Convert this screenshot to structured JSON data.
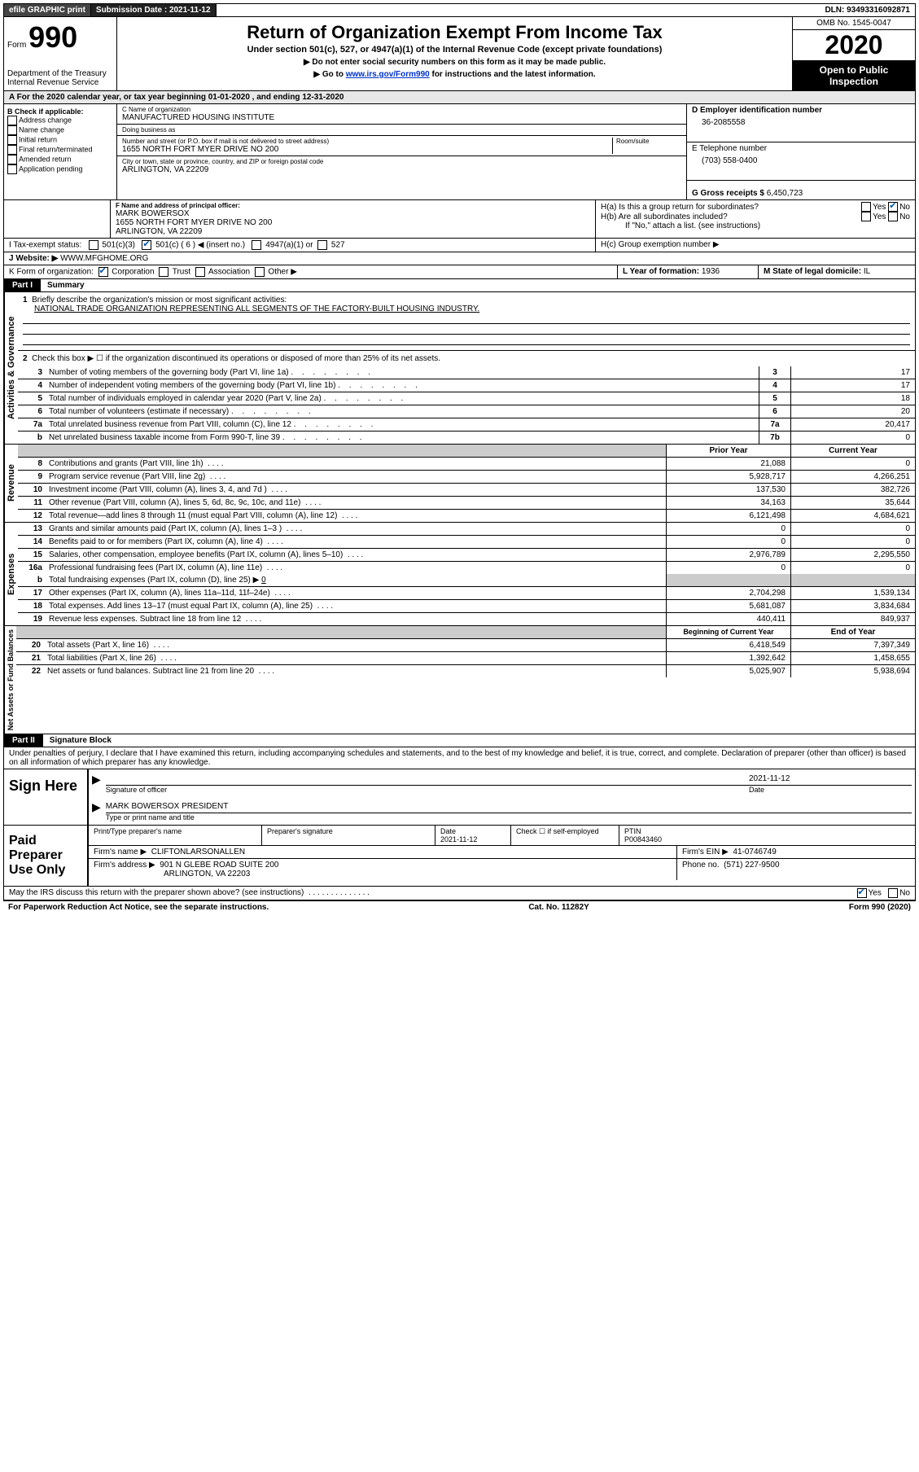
{
  "topbar": {
    "efile": "efile GRAPHIC print",
    "submission_label": "Submission Date :",
    "submission_date": "2021-11-12",
    "dln_label": "DLN:",
    "dln": "93493316092871"
  },
  "header": {
    "form_label": "Form",
    "form_number": "990",
    "dept1": "Department of the Treasury",
    "dept2": "Internal Revenue Service",
    "title": "Return of Organization Exempt From Income Tax",
    "sub1": "Under section 501(c), 527, or 4947(a)(1) of the Internal Revenue Code (except private foundations)",
    "sub2": "▶ Do not enter social security numbers on this form as it may be made public.",
    "sub3a": "▶ Go to ",
    "sub3_link": "www.irs.gov/Form990",
    "sub3b": " for instructions and the latest information.",
    "omb": "OMB No. 1545-0047",
    "year": "2020",
    "inspection1": "Open to Public",
    "inspection2": "Inspection"
  },
  "lineA": "A For the 2020 calendar year, or tax year beginning 01-01-2020    , and ending 12-31-2020",
  "boxB": {
    "title": "B Check if applicable:",
    "opts": [
      "Address change",
      "Name change",
      "Initial return",
      "Final return/terminated",
      "Amended return",
      "Application pending"
    ]
  },
  "boxC": {
    "name_label": "C Name of organization",
    "name": "MANUFACTURED HOUSING INSTITUTE",
    "dba_label": "Doing business as",
    "dba": "",
    "street_label": "Number and street (or P.O. box if mail is not delivered to street address)",
    "room_label": "Room/suite",
    "street": "1655 NORTH FORT MYER DRIVE NO 200",
    "city_label": "City or town, state or province, country, and ZIP or foreign postal code",
    "city": "ARLINGTON, VA  22209"
  },
  "boxD": {
    "label": "D Employer identification number",
    "value": "36-2085558"
  },
  "boxE": {
    "label": "E Telephone number",
    "value": "(703) 558-0400"
  },
  "boxG": {
    "label": "G Gross receipts $",
    "value": "6,450,723"
  },
  "boxF": {
    "label": "F Name and address of principal officer:",
    "name": "MARK BOWERSOX",
    "addr1": "1655 NORTH FORT MYER DRIVE NO 200",
    "addr2": "ARLINGTON, VA  22209"
  },
  "boxH": {
    "ha_label": "H(a)  Is this a group return for subordinates?",
    "yes": "Yes",
    "no": "No",
    "hb_label": "H(b)  Are all subordinates included?",
    "hb_note": "If \"No,\" attach a list. (see instructions)",
    "hc_label": "H(c)  Group exemption number ▶"
  },
  "boxI": {
    "label": "I  Tax-exempt status:",
    "o1": "501(c)(3)",
    "o2": "501(c) ( 6 ) ◀ (insert no.)",
    "o3": "4947(a)(1) or",
    "o4": "527"
  },
  "boxJ": {
    "label": "J  Website: ▶",
    "value": "WWW.MFGHOME.ORG"
  },
  "boxK": {
    "label": "K Form of organization:",
    "o1": "Corporation",
    "o2": "Trust",
    "o3": "Association",
    "o4": "Other ▶"
  },
  "boxL": {
    "label": "L Year of formation:",
    "value": "1936"
  },
  "boxM": {
    "label": "M State of legal domicile:",
    "value": "IL"
  },
  "part1": {
    "header": "Part I",
    "title": "Summary"
  },
  "governance": {
    "side": "Activities & Governance",
    "l1_label": "Briefly describe the organization's mission or most significant activities:",
    "l1_value": "NATIONAL TRADE ORGANIZATION REPRESENTING ALL SEGMENTS OF THE FACTORY-BUILT HOUSING INDUSTRY.",
    "l2": "Check this box ▶ ☐  if the organization discontinued its operations or disposed of more than 25% of its net assets.",
    "rows": [
      {
        "n": "3",
        "d": "Number of voting members of the governing body (Part VI, line 1a)",
        "box": "3",
        "v": "17"
      },
      {
        "n": "4",
        "d": "Number of independent voting members of the governing body (Part VI, line 1b)",
        "box": "4",
        "v": "17"
      },
      {
        "n": "5",
        "d": "Total number of individuals employed in calendar year 2020 (Part V, line 2a)",
        "box": "5",
        "v": "18"
      },
      {
        "n": "6",
        "d": "Total number of volunteers (estimate if necessary)",
        "box": "6",
        "v": "20"
      },
      {
        "n": "7a",
        "d": "Total unrelated business revenue from Part VIII, column (C), line 12",
        "box": "7a",
        "v": "20,417"
      },
      {
        "n": "b",
        "d": "Net unrelated business taxable income from Form 990-T, line 39",
        "box": "7b",
        "v": "0"
      }
    ]
  },
  "revenue": {
    "side": "Revenue",
    "hdr_prior": "Prior Year",
    "hdr_curr": "Current Year",
    "rows": [
      {
        "n": "8",
        "d": "Contributions and grants (Part VIII, line 1h)",
        "p": "21,088",
        "c": "0"
      },
      {
        "n": "9",
        "d": "Program service revenue (Part VIII, line 2g)",
        "p": "5,928,717",
        "c": "4,266,251"
      },
      {
        "n": "10",
        "d": "Investment income (Part VIII, column (A), lines 3, 4, and 7d )",
        "p": "137,530",
        "c": "382,726"
      },
      {
        "n": "11",
        "d": "Other revenue (Part VIII, column (A), lines 5, 6d, 8c, 9c, 10c, and 11e)",
        "p": "34,163",
        "c": "35,644"
      },
      {
        "n": "12",
        "d": "Total revenue—add lines 8 through 11 (must equal Part VIII, column (A), line 12)",
        "p": "6,121,498",
        "c": "4,684,621"
      }
    ]
  },
  "expenses": {
    "side": "Expenses",
    "rows": [
      {
        "n": "13",
        "d": "Grants and similar amounts paid (Part IX, column (A), lines 1–3 )",
        "p": "0",
        "c": "0"
      },
      {
        "n": "14",
        "d": "Benefits paid to or for members (Part IX, column (A), line 4)",
        "p": "0",
        "c": "0"
      },
      {
        "n": "15",
        "d": "Salaries, other compensation, employee benefits (Part IX, column (A), lines 5–10)",
        "p": "2,976,789",
        "c": "2,295,550"
      },
      {
        "n": "16a",
        "d": "Professional fundraising fees (Part IX, column (A), line 11e)",
        "p": "0",
        "c": "0"
      }
    ],
    "l16b": "Total fundraising expenses (Part IX, column (D), line 25) ▶",
    "l16b_val": "0",
    "rows2": [
      {
        "n": "17",
        "d": "Other expenses (Part IX, column (A), lines 11a–11d, 11f–24e)",
        "p": "2,704,298",
        "c": "1,539,134"
      },
      {
        "n": "18",
        "d": "Total expenses. Add lines 13–17 (must equal Part IX, column (A), line 25)",
        "p": "5,681,087",
        "c": "3,834,684"
      },
      {
        "n": "19",
        "d": "Revenue less expenses. Subtract line 18 from line 12",
        "p": "440,411",
        "c": "849,937"
      }
    ]
  },
  "netassets": {
    "side": "Net Assets or Fund Balances",
    "hdr_begin": "Beginning of Current Year",
    "hdr_end": "End of Year",
    "rows": [
      {
        "n": "20",
        "d": "Total assets (Part X, line 16)",
        "p": "6,418,549",
        "c": "7,397,349"
      },
      {
        "n": "21",
        "d": "Total liabilities (Part X, line 26)",
        "p": "1,392,642",
        "c": "1,458,655"
      },
      {
        "n": "22",
        "d": "Net assets or fund balances. Subtract line 21 from line 20",
        "p": "5,025,907",
        "c": "5,938,694"
      }
    ]
  },
  "part2": {
    "header": "Part II",
    "title": "Signature Block",
    "declaration": "Under penalties of perjury, I declare that I have examined this return, including accompanying schedules and statements, and to the best of my knowledge and belief, it is true, correct, and complete. Declaration of preparer (other than officer) is based on all information of which preparer has any knowledge."
  },
  "sign": {
    "label": "Sign Here",
    "sig_of_officer": "Signature of officer",
    "date_label": "Date",
    "date": "2021-11-12",
    "name": "MARK BOWERSOX PRESIDENT",
    "name_label": "Type or print name and title"
  },
  "preparer": {
    "label": "Paid Preparer Use Only",
    "h1": "Print/Type preparer's name",
    "h2": "Preparer's signature",
    "h3_label": "Date",
    "h3": "2021-11-12",
    "h4_label": "Check ☐ if self-employed",
    "h5_label": "PTIN",
    "h5": "P00843460",
    "firm_label": "Firm's name    ▶",
    "firm": "CLIFTONLARSONALLEN",
    "ein_label": "Firm's EIN ▶",
    "ein": "41-0746749",
    "addr_label": "Firm's address ▶",
    "addr1": "901 N GLEBE ROAD SUITE 200",
    "addr2": "ARLINGTON, VA  22203",
    "phone_label": "Phone no.",
    "phone": "(571) 227-9500"
  },
  "discuss": {
    "q": "May the IRS discuss this return with the preparer shown above? (see instructions)",
    "yes": "Yes",
    "no": "No"
  },
  "footer": {
    "left": "For Paperwork Reduction Act Notice, see the separate instructions.",
    "mid": "Cat. No. 11282Y",
    "right": "Form 990 (2020)"
  }
}
